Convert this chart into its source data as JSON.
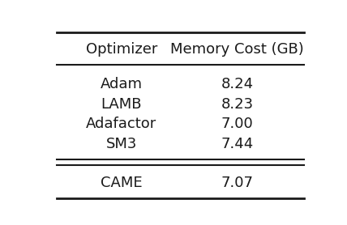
{
  "col_headers": [
    "Optimizer",
    "Memory Cost (GB)"
  ],
  "rows_main": [
    [
      "Adam",
      "8.24"
    ],
    [
      "LAMB",
      "8.23"
    ],
    [
      "Adafactor",
      "7.00"
    ],
    [
      "SM3",
      "7.44"
    ]
  ],
  "rows_came": [
    [
      "CAME",
      "7.07"
    ]
  ],
  "background_color": "#ffffff",
  "text_color": "#1a1a1a",
  "header_fontsize": 13,
  "body_fontsize": 13,
  "fig_width": 4.28,
  "fig_height": 2.78,
  "dpi": 100
}
